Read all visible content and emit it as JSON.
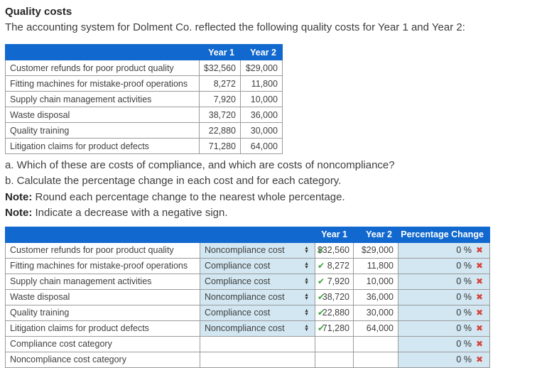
{
  "page": {
    "title": "Quality costs",
    "intro": "The accounting system for Dolment Co. reflected the following quality costs for Year 1 and Year 2:",
    "question_a": "a. Which of these are costs of compliance, and which are costs of noncompliance?",
    "question_b": "b. Calculate the percentage change in each cost and for each category.",
    "note_label": "Note:",
    "note1_text": " Round each percentage change to the nearest whole percentage.",
    "note2_text": " Indicate a decrease with a negative sign."
  },
  "colors": {
    "header_blue": "#1168ce",
    "input_cell_blue": "#d2e7f2",
    "check_green": "#3ba23b",
    "x_red": "#d6453d",
    "border_gray": "#9b9b9b"
  },
  "icons": {
    "check": "✔",
    "x_mark": "✖",
    "arrow_up": "▲",
    "arrow_down": "▼"
  },
  "table1": {
    "col_year1": "Year 1",
    "col_year2": "Year 2",
    "rows": [
      {
        "label": "Customer refunds for poor product quality",
        "year1": "$32,560",
        "year2": "$29,000"
      },
      {
        "label": "Fitting machines for mistake-proof operations",
        "year1": "8,272",
        "year2": "11,800"
      },
      {
        "label": "Supply chain management activities",
        "year1": "7,920",
        "year2": "10,000"
      },
      {
        "label": "Waste disposal",
        "year1": "38,720",
        "year2": "36,000"
      },
      {
        "label": "Quality training",
        "year1": "22,880",
        "year2": "30,000"
      },
      {
        "label": "Litigation claims for product defects",
        "year1": "71,280",
        "year2": "64,000"
      }
    ]
  },
  "table2": {
    "col_year1": "Year 1",
    "col_year2": "Year 2",
    "col_pct": "Percentage Change",
    "rows": [
      {
        "label": "Customer refunds for poor product quality",
        "category": "Noncompliance cost",
        "year1": "$32,560",
        "year2": "$29,000",
        "pct": "0 %"
      },
      {
        "label": "Fitting machines for mistake-proof operations",
        "category": "Compliance cost",
        "year1": "8,272",
        "year2": "11,800",
        "pct": "0 %"
      },
      {
        "label": "Supply chain management activities",
        "category": "Compliance cost",
        "year1": "7,920",
        "year2": "10,000",
        "pct": "0 %"
      },
      {
        "label": "Waste disposal",
        "category": "Noncompliance cost",
        "year1": "38,720",
        "year2": "36,000",
        "pct": "0 %"
      },
      {
        "label": "Quality training",
        "category": "Compliance cost",
        "year1": "22,880",
        "year2": "30,000",
        "pct": "0 %"
      },
      {
        "label": "Litigation claims for product defects",
        "category": "Noncompliance cost",
        "year1": "71,280",
        "year2": "64,000",
        "pct": "0 %"
      },
      {
        "label": "Compliance cost category",
        "pct": "0 %"
      },
      {
        "label": "Noncompliance cost category",
        "pct": "0 %"
      }
    ]
  }
}
